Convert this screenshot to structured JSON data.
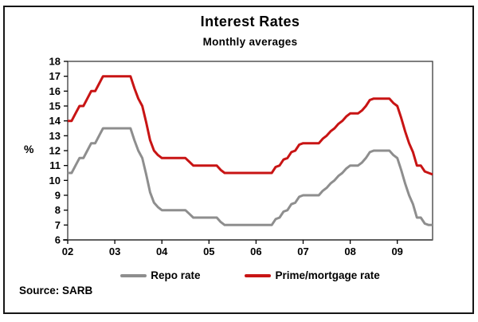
{
  "window": {
    "background": "#ffffff",
    "frame_border_color": "#161616"
  },
  "source": {
    "label": "Source: SARB"
  },
  "chart_data": {
    "type": "line",
    "title": "Interest Rates",
    "subtitle": "Monthly averages",
    "ylabel": "%",
    "xlabel": "",
    "ylim": [
      6,
      18
    ],
    "y_ticks": [
      18,
      17,
      16,
      15,
      14,
      13,
      12,
      11,
      10,
      9,
      8,
      7,
      6
    ],
    "x_tick_labels": [
      "02",
      "03",
      "04",
      "05",
      "06",
      "07",
      "08",
      "09"
    ],
    "x_description": "Monthly values, January 2002 to October 2009; one x tick per year",
    "months_total": 94,
    "grid": "off",
    "legend_position": "bottom",
    "axis_color": "#3a3a3a",
    "series": [
      {
        "name": "Repo rate",
        "color": "#8e8e8e",
        "values": [
          10.5,
          10.5,
          11.0,
          11.5,
          11.5,
          12.0,
          12.5,
          12.5,
          13.0,
          13.5,
          13.5,
          13.5,
          13.5,
          13.5,
          13.5,
          13.5,
          13.5,
          12.7,
          12.0,
          11.5,
          10.4,
          9.2,
          8.5,
          8.2,
          8.0,
          8.0,
          8.0,
          8.0,
          8.0,
          8.0,
          8.0,
          7.75,
          7.5,
          7.5,
          7.5,
          7.5,
          7.5,
          7.5,
          7.5,
          7.2,
          7.0,
          7.0,
          7.0,
          7.0,
          7.0,
          7.0,
          7.0,
          7.0,
          7.0,
          7.0,
          7.0,
          7.0,
          7.0,
          7.4,
          7.5,
          7.9,
          8.0,
          8.4,
          8.5,
          8.9,
          9.0,
          9.0,
          9.0,
          9.0,
          9.0,
          9.3,
          9.5,
          9.8,
          10.0,
          10.3,
          10.5,
          10.8,
          11.0,
          11.0,
          11.0,
          11.2,
          11.5,
          11.9,
          12.0,
          12.0,
          12.0,
          12.0,
          12.0,
          11.7,
          11.5,
          10.7,
          9.8,
          9.0,
          8.4,
          7.5,
          7.5,
          7.1,
          7.0,
          7.0
        ]
      },
      {
        "name": "Prime/mortgage rate",
        "color": "#c81414",
        "values": [
          14.0,
          14.0,
          14.5,
          15.0,
          15.0,
          15.5,
          16.0,
          16.0,
          16.5,
          17.0,
          17.0,
          17.0,
          17.0,
          17.0,
          17.0,
          17.0,
          17.0,
          16.2,
          15.5,
          15.0,
          13.9,
          12.7,
          12.0,
          11.7,
          11.5,
          11.5,
          11.5,
          11.5,
          11.5,
          11.5,
          11.5,
          11.25,
          11.0,
          11.0,
          11.0,
          11.0,
          11.0,
          11.0,
          11.0,
          10.7,
          10.5,
          10.5,
          10.5,
          10.5,
          10.5,
          10.5,
          10.5,
          10.5,
          10.5,
          10.5,
          10.5,
          10.5,
          10.5,
          10.9,
          11.0,
          11.4,
          11.5,
          11.9,
          12.0,
          12.4,
          12.5,
          12.5,
          12.5,
          12.5,
          12.5,
          12.8,
          13.0,
          13.3,
          13.5,
          13.8,
          14.0,
          14.3,
          14.5,
          14.5,
          14.5,
          14.7,
          15.0,
          15.4,
          15.5,
          15.5,
          15.5,
          15.5,
          15.5,
          15.2,
          15.0,
          14.2,
          13.3,
          12.5,
          11.9,
          11.0,
          11.0,
          10.6,
          10.5,
          10.4
        ]
      }
    ]
  }
}
